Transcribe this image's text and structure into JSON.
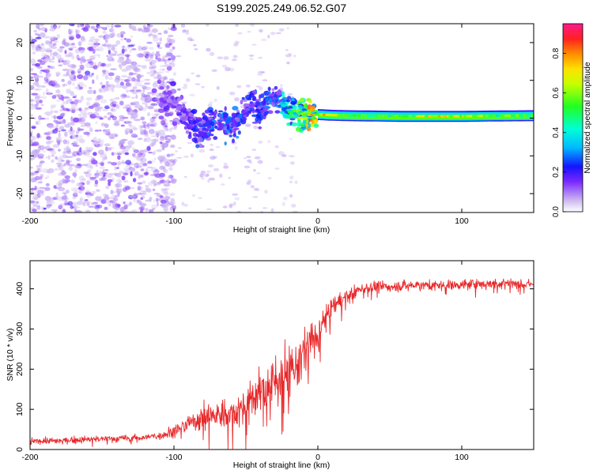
{
  "title": "S199.2025.249.06.52.G07",
  "chart_data": [
    {
      "type": "heatmap",
      "name": "spectrogram",
      "xlabel": "Height of straight line (km)",
      "ylabel": "Frequency (Hz)",
      "xlim": [
        -200,
        150
      ],
      "ylim": [
        -25,
        25
      ],
      "xticks": [
        -200,
        -100,
        0,
        100
      ],
      "xtick_labels": [
        "-200",
        "-100",
        "0",
        "100"
      ],
      "yticks": [
        -20,
        -10,
        0,
        10,
        20
      ],
      "ytick_labels": [
        "-20",
        "-10",
        "0",
        "10",
        "20"
      ],
      "colorbar": {
        "label": "Normalized spectral amplitude",
        "range": [
          0,
          0.95
        ],
        "ticks": [
          0,
          0.2,
          0.4,
          0.6,
          0.8
        ],
        "tick_labels": [
          "0.0",
          "0.2",
          "0.4",
          "0.6",
          "0.8"
        ]
      },
      "ridge": {
        "x": [
          -108,
          -100,
          -92,
          -84,
          -76,
          -68,
          -60,
          -52,
          -46,
          -40,
          -34,
          -28,
          -22,
          -16,
          -10,
          -4,
          0,
          10,
          20,
          40,
          60,
          80,
          100,
          120,
          150
        ],
        "freq": [
          5,
          4,
          1,
          -3,
          -2,
          -1,
          -2,
          1,
          5,
          2,
          5,
          6,
          2,
          2,
          1,
          0.8,
          1,
          0.8,
          0.7,
          0.6,
          0.5,
          0.5,
          0.5,
          0.6,
          0.7
        ],
        "amplitude": [
          0.15,
          0.2,
          0.2,
          0.25,
          0.3,
          0.3,
          0.3,
          0.3,
          0.25,
          0.3,
          0.3,
          0.3,
          0.5,
          0.6,
          0.7,
          0.85,
          0.8,
          0.85,
          0.6,
          0.55,
          0.6,
          0.8,
          0.8,
          0.6,
          0.6
        ]
      }
    },
    {
      "type": "line",
      "name": "snr",
      "xlabel": "Height of straight line (km)",
      "ylabel": "SNR (10 * v/v)",
      "xlim": [
        -200,
        150
      ],
      "ylim": [
        0,
        470
      ],
      "xticks": [
        -200,
        -100,
        0,
        100
      ],
      "xtick_labels": [
        "-200",
        "-100",
        "0",
        "100"
      ],
      "yticks": [
        0,
        100,
        200,
        300,
        400
      ],
      "ytick_labels": [
        "0",
        "100",
        "200",
        "300",
        "400"
      ],
      "color": "#e8282a",
      "series": [
        {
          "name": "SNR",
          "x": [
            -200,
            -180,
            -160,
            -140,
            -120,
            -110,
            -100,
            -90,
            -80,
            -70,
            -60,
            -50,
            -40,
            -30,
            -20,
            -15,
            -10,
            -5,
            0,
            5,
            10,
            15,
            20,
            25,
            30,
            40,
            50,
            60,
            70,
            80,
            90,
            100,
            110,
            120,
            130,
            140,
            150
          ],
          "y": [
            20,
            22,
            25,
            27,
            30,
            35,
            45,
            65,
            80,
            85,
            90,
            110,
            140,
            170,
            190,
            200,
            240,
            270,
            280,
            330,
            350,
            370,
            380,
            390,
            400,
            405,
            405,
            408,
            410,
            408,
            410,
            410,
            412,
            412,
            415,
            412,
            410
          ],
          "noise": [
            7,
            7,
            8,
            8,
            8,
            10,
            14,
            20,
            30,
            35,
            40,
            45,
            55,
            60,
            65,
            60,
            60,
            50,
            45,
            30,
            25,
            20,
            18,
            15,
            12,
            12,
            12,
            12,
            12,
            12,
            12,
            12,
            12,
            12,
            12,
            12,
            12
          ]
        }
      ]
    }
  ]
}
